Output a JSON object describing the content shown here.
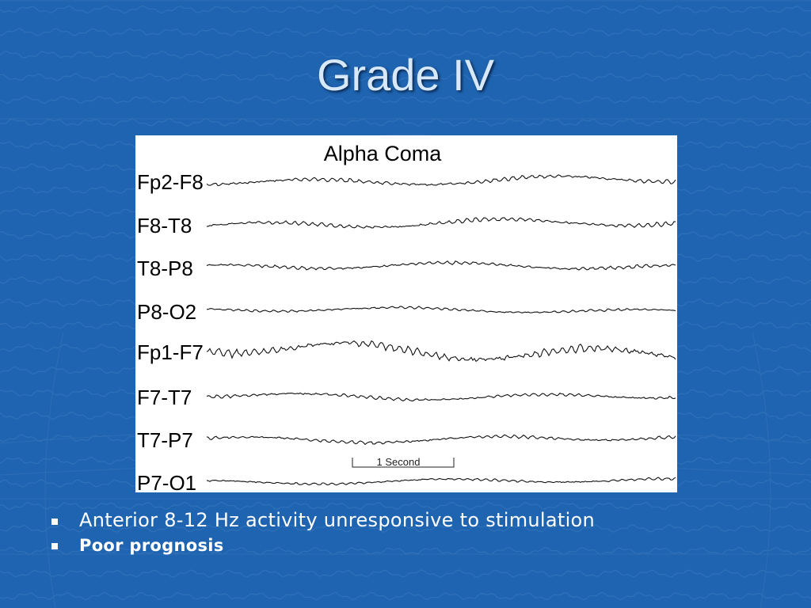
{
  "slide": {
    "title": "Grade IV",
    "background_color": "#1f64b0",
    "title_color": "#d6e8fa"
  },
  "figure": {
    "heading": "Alpha Coma",
    "channels": [
      "Fp2-F8",
      "F8-T8",
      "T8-P8",
      "P8-O2",
      "Fp1-F7",
      "F7-T7",
      "T7-P7",
      "P7-O1"
    ],
    "scale_bar_label": "1 Second"
  },
  "bullets": [
    {
      "text": "Anterior 8-12 Hz activity unresponsive to stimulation",
      "bold": false
    },
    {
      "text": "Poor prognosis",
      "bold": true
    }
  ]
}
